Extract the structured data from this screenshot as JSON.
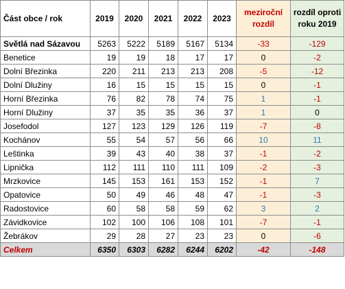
{
  "header": {
    "name_col": "Část obce / rok",
    "years": [
      "2019",
      "2020",
      "2021",
      "2022",
      "2023"
    ],
    "change_col": "meziroční rozdíl",
    "change2019_col": "rozdíl oproti roku 2019"
  },
  "rows": [
    {
      "name": "Světlá nad Sázavou",
      "values": [
        "5263",
        "5222",
        "5189",
        "5167",
        "5134"
      ],
      "change": "-33",
      "change2019": "-129"
    },
    {
      "name": "Benetice",
      "values": [
        "19",
        "19",
        "18",
        "17",
        "17"
      ],
      "change": "0",
      "change2019": "-2"
    },
    {
      "name": "Dolní Březinka",
      "values": [
        "220",
        "211",
        "213",
        "213",
        "208"
      ],
      "change": "-5",
      "change2019": "-12"
    },
    {
      "name": "Dolní Dlužiny",
      "values": [
        "16",
        "15",
        "15",
        "15",
        "15"
      ],
      "change": "0",
      "change2019": "-1"
    },
    {
      "name": "Horní Březinka",
      "values": [
        "76",
        "82",
        "78",
        "74",
        "75"
      ],
      "change": "1",
      "change2019": "-1"
    },
    {
      "name": "Horní Dlužiny",
      "values": [
        "37",
        "35",
        "35",
        "36",
        "37"
      ],
      "change": "1",
      "change2019": "0"
    },
    {
      "name": "Josefodol",
      "values": [
        "127",
        "123",
        "129",
        "126",
        "119"
      ],
      "change": "-7",
      "change2019": "-8"
    },
    {
      "name": "Kochánov",
      "values": [
        "55",
        "54",
        "57",
        "56",
        "66"
      ],
      "change": "10",
      "change2019": "11"
    },
    {
      "name": "Leštinka",
      "values": [
        "39",
        "43",
        "40",
        "38",
        "37"
      ],
      "change": "-1",
      "change2019": "-2"
    },
    {
      "name": "Lipnička",
      "values": [
        "112",
        "111",
        "110",
        "111",
        "109"
      ],
      "change": "-2",
      "change2019": "-3"
    },
    {
      "name": "Mrzkovice",
      "values": [
        "145",
        "153",
        "161",
        "153",
        "152"
      ],
      "change": "-1",
      "change2019": "7"
    },
    {
      "name": "Opatovice",
      "values": [
        "50",
        "49",
        "46",
        "48",
        "47"
      ],
      "change": "-1",
      "change2019": "-3"
    },
    {
      "name": "Radostovice",
      "values": [
        "60",
        "58",
        "58",
        "59",
        "62"
      ],
      "change": "3",
      "change2019": "2"
    },
    {
      "name": "Závidkovice",
      "values": [
        "102",
        "100",
        "106",
        "108",
        "101"
      ],
      "change": "-7",
      "change2019": "-1"
    },
    {
      "name": "Žebrákov",
      "values": [
        "29",
        "28",
        "27",
        "23",
        "23"
      ],
      "change": "0",
      "change2019": "-6"
    }
  ],
  "total": {
    "name": "Celkem",
    "values": [
      "6350",
      "6303",
      "6282",
      "6244",
      "6202"
    ],
    "change": "-42",
    "change2019": "-148"
  },
  "colors": {
    "negative": "#c00000",
    "positive": "#2e75b6",
    "change_bg": "#fdefd7",
    "change2019_bg": "#e6f0de",
    "total_bg": "#d9d9d9"
  }
}
